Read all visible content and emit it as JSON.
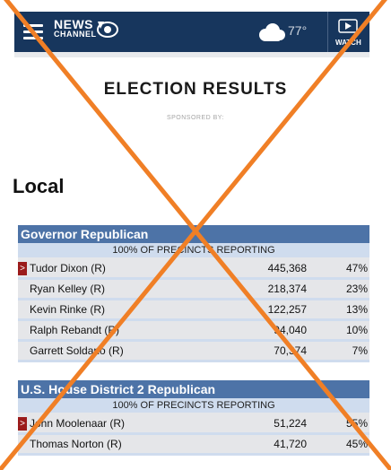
{
  "header": {
    "logo_line1": "NEWS",
    "logo_line2": "CHANNEL",
    "temperature": "77°",
    "watch_label": "WATCH"
  },
  "page": {
    "title": "ELECTION RESULTS",
    "sponsored": "SPONSORED BY:",
    "section": "Local"
  },
  "races": [
    {
      "title": "Governor Republican",
      "reporting": "100% OF PRECINCTS REPORTING",
      "candidates": [
        {
          "name": "Tudor Dixon (R)",
          "votes": "445,368",
          "pct": "47%",
          "winner": true
        },
        {
          "name": "Ryan Kelley (R)",
          "votes": "218,374",
          "pct": "23%",
          "winner": false
        },
        {
          "name": "Kevin Rinke (R)",
          "votes": "122,257",
          "pct": "13%",
          "winner": false
        },
        {
          "name": "Ralph Rebandt (R)",
          "votes": "94,040",
          "pct": "10%",
          "winner": false
        },
        {
          "name": "Garrett Soldano (R)",
          "votes": "70,374",
          "pct": "7%",
          "winner": false
        }
      ]
    },
    {
      "title": "U.S. House District 2 Republican",
      "reporting": "100% OF PRECINCTS REPORTING",
      "candidates": [
        {
          "name": "John Moolenaar (R)",
          "votes": "51,224",
          "pct": "55%",
          "winner": true
        },
        {
          "name": "Thomas Norton (R)",
          "votes": "41,720",
          "pct": "45%",
          "winner": false
        }
      ]
    }
  ],
  "winner_marker": ">",
  "colors": {
    "header_bg": "#17365d",
    "race_header": "#4d73a7",
    "winner_marker": "#9b1b1b",
    "overlay_cross": "#f07f26"
  },
  "icons": [
    "hamburger-menu-icon",
    "cloud-icon",
    "play-icon"
  ]
}
